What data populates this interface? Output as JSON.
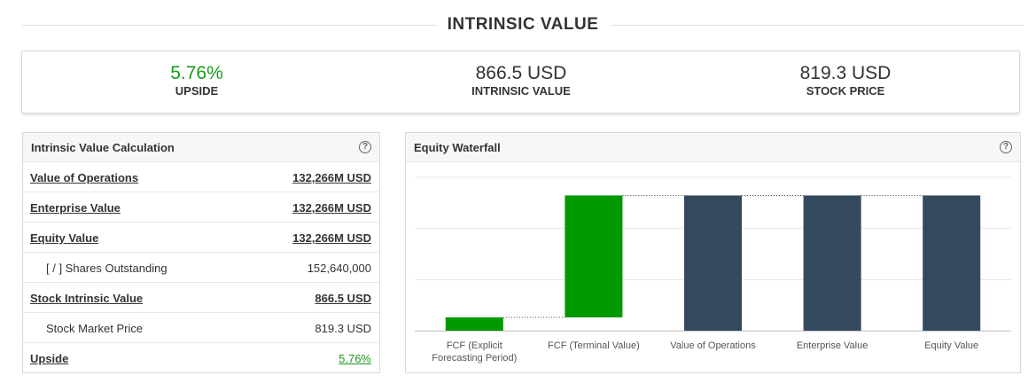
{
  "header": {
    "title": "INTRINSIC VALUE"
  },
  "summary": {
    "upside": {
      "value": "5.76%",
      "label": "UPSIDE",
      "color": "#1a9a1a"
    },
    "intrinsic": {
      "value": "866.5 USD",
      "label": "INTRINSIC VALUE"
    },
    "price": {
      "value": "819.3 USD",
      "label": "STOCK PRICE"
    }
  },
  "calc_panel": {
    "title": "Intrinsic Value Calculation",
    "help_icon": "question-circle-icon",
    "rows": [
      {
        "label": "Value of Operations",
        "value": "132,266M USD"
      },
      {
        "label": "Enterprise Value",
        "value": "132,266M USD"
      },
      {
        "label": "Equity Value",
        "value": "132,266M USD"
      },
      {
        "label": "[ / ] Shares Outstanding",
        "value": "152,640,000"
      },
      {
        "label": "Stock Intrinsic Value",
        "value": "866.5 USD"
      },
      {
        "label": "Stock Market Price",
        "value": "819.3 USD"
      },
      {
        "label": "Upside",
        "value": "5.76%"
      }
    ]
  },
  "waterfall_panel": {
    "title": "Equity Waterfall",
    "help_icon": "question-circle-icon"
  },
  "chart_data": {
    "type": "bar",
    "subtype": "waterfall",
    "categories": [
      "FCF (Explicit Forecasting Period)",
      "FCF (Terminal Value)",
      "Value of Operations",
      "Enterprise Value",
      "Equity Value"
    ],
    "bars": [
      {
        "start": 0,
        "end": 13000,
        "kind": "increase"
      },
      {
        "start": 13000,
        "end": 132266,
        "kind": "increase"
      },
      {
        "start": 0,
        "end": 132266,
        "kind": "total"
      },
      {
        "start": 0,
        "end": 132266,
        "kind": "total"
      },
      {
        "start": 0,
        "end": 132266,
        "kind": "total"
      }
    ],
    "ylim": [
      0,
      150000
    ],
    "grid": true,
    "colors": {
      "increase": "#009900",
      "total": "#34495e",
      "grid": "#e6e6e6",
      "connector": "#333333"
    }
  }
}
